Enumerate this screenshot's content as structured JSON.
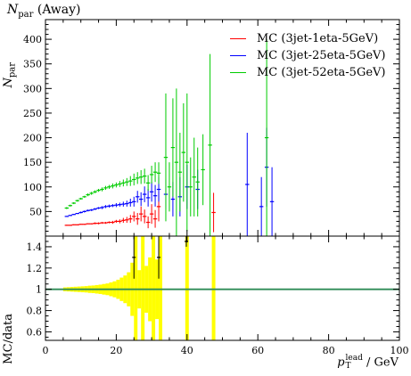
{
  "chart_data": [
    {
      "type": "scatter",
      "panel": "main",
      "title": "N_par (Away)",
      "title_main": "N",
      "title_sub": "par",
      "title_rest": " (Away)",
      "ylabel_main": "N",
      "ylabel_sub": "par",
      "ylim": [
        0,
        440
      ],
      "xlim": [
        0,
        100
      ],
      "y_ticks": [
        50,
        100,
        150,
        200,
        250,
        300,
        350,
        400
      ],
      "y_tick_labels": [
        "50",
        "100",
        "150",
        "200",
        "250",
        "300",
        "350",
        "400"
      ],
      "legend_position": "top-right",
      "series": [
        {
          "name": "MC (3jet-1eta-5GeV)",
          "color": "#ff0000",
          "points": [
            {
              "x": 6,
              "y": 22,
              "err": 1
            },
            {
              "x": 7,
              "y": 22,
              "err": 1
            },
            {
              "x": 8,
              "y": 23,
              "err": 1
            },
            {
              "x": 9,
              "y": 23,
              "err": 1
            },
            {
              "x": 10,
              "y": 24,
              "err": 1
            },
            {
              "x": 11,
              "y": 24,
              "err": 1
            },
            {
              "x": 12,
              "y": 25,
              "err": 1
            },
            {
              "x": 13,
              "y": 25,
              "err": 1
            },
            {
              "x": 14,
              "y": 26,
              "err": 2
            },
            {
              "x": 15,
              "y": 26,
              "err": 2
            },
            {
              "x": 16,
              "y": 27,
              "err": 2
            },
            {
              "x": 17,
              "y": 27,
              "err": 2
            },
            {
              "x": 18,
              "y": 28,
              "err": 2
            },
            {
              "x": 19,
              "y": 28,
              "err": 3
            },
            {
              "x": 20,
              "y": 30,
              "err": 3
            },
            {
              "x": 21,
              "y": 30,
              "err": 4
            },
            {
              "x": 22,
              "y": 32,
              "err": 5
            },
            {
              "x": 23,
              "y": 33,
              "err": 6
            },
            {
              "x": 24,
              "y": 35,
              "err": 8
            },
            {
              "x": 25,
              "y": 40,
              "err": 10
            },
            {
              "x": 26,
              "y": 35,
              "err": 12
            },
            {
              "x": 27,
              "y": 45,
              "err": 15
            },
            {
              "x": 28,
              "y": 40,
              "err": 14
            },
            {
              "x": 29,
              "y": 28,
              "err": 12
            },
            {
              "x": 30,
              "y": 45,
              "err": 20
            },
            {
              "x": 31,
              "y": 35,
              "err": 18
            },
            {
              "x": 32,
              "y": 60,
              "err": 30
            },
            {
              "x": 47.5,
              "y": 48,
              "err": 40
            }
          ]
        },
        {
          "name": "MC (3jet-25eta-5GeV)",
          "color": "#0000ff",
          "points": [
            {
              "x": 6,
              "y": 40,
              "err": 1
            },
            {
              "x": 7,
              "y": 42,
              "err": 1
            },
            {
              "x": 8,
              "y": 44,
              "err": 1
            },
            {
              "x": 9,
              "y": 46,
              "err": 1
            },
            {
              "x": 10,
              "y": 48,
              "err": 2
            },
            {
              "x": 11,
              "y": 50,
              "err": 2
            },
            {
              "x": 12,
              "y": 52,
              "err": 2
            },
            {
              "x": 13,
              "y": 53,
              "err": 2
            },
            {
              "x": 14,
              "y": 55,
              "err": 2
            },
            {
              "x": 15,
              "y": 57,
              "err": 2
            },
            {
              "x": 16,
              "y": 58,
              "err": 3
            },
            {
              "x": 17,
              "y": 60,
              "err": 3
            },
            {
              "x": 18,
              "y": 61,
              "err": 3
            },
            {
              "x": 19,
              "y": 62,
              "err": 3
            },
            {
              "x": 20,
              "y": 63,
              "err": 4
            },
            {
              "x": 21,
              "y": 64,
              "err": 4
            },
            {
              "x": 22,
              "y": 65,
              "err": 5
            },
            {
              "x": 23,
              "y": 66,
              "err": 6
            },
            {
              "x": 24,
              "y": 68,
              "err": 8
            },
            {
              "x": 25,
              "y": 70,
              "err": 10
            },
            {
              "x": 26,
              "y": 80,
              "err": 12
            },
            {
              "x": 27,
              "y": 75,
              "err": 14
            },
            {
              "x": 28,
              "y": 85,
              "err": 16
            },
            {
              "x": 29,
              "y": 78,
              "err": 18
            },
            {
              "x": 30,
              "y": 90,
              "err": 20
            },
            {
              "x": 31,
              "y": 82,
              "err": 22
            },
            {
              "x": 32,
              "y": 95,
              "err": 25
            },
            {
              "x": 34,
              "y": 85,
              "err": 30
            },
            {
              "x": 36,
              "y": 75,
              "err": 35
            },
            {
              "x": 38,
              "y": 80,
              "err": 40
            },
            {
              "x": 40,
              "y": 100,
              "err": 45
            },
            {
              "x": 43,
              "y": 95,
              "err": 40
            },
            {
              "x": 57,
              "y": 105,
              "err": 105
            },
            {
              "x": 61,
              "y": 60,
              "err": 60
            },
            {
              "x": 62.5,
              "y": 140,
              "err": 80
            },
            {
              "x": 64,
              "y": 70,
              "err": 70
            }
          ]
        },
        {
          "name": "MC (3jet-52eta-5GeV)",
          "color": "#00cc00",
          "points": [
            {
              "x": 6,
              "y": 57,
              "err": 2
            },
            {
              "x": 7,
              "y": 62,
              "err": 2
            },
            {
              "x": 8,
              "y": 67,
              "err": 2
            },
            {
              "x": 9,
              "y": 72,
              "err": 2
            },
            {
              "x": 10,
              "y": 76,
              "err": 2
            },
            {
              "x": 11,
              "y": 80,
              "err": 2
            },
            {
              "x": 12,
              "y": 84,
              "err": 3
            },
            {
              "x": 13,
              "y": 87,
              "err": 3
            },
            {
              "x": 14,
              "y": 90,
              "err": 3
            },
            {
              "x": 15,
              "y": 93,
              "err": 3
            },
            {
              "x": 16,
              "y": 95,
              "err": 4
            },
            {
              "x": 17,
              "y": 98,
              "err": 4
            },
            {
              "x": 18,
              "y": 100,
              "err": 4
            },
            {
              "x": 19,
              "y": 102,
              "err": 5
            },
            {
              "x": 20,
              "y": 104,
              "err": 5
            },
            {
              "x": 21,
              "y": 106,
              "err": 6
            },
            {
              "x": 22,
              "y": 108,
              "err": 7
            },
            {
              "x": 23,
              "y": 110,
              "err": 8
            },
            {
              "x": 24,
              "y": 112,
              "err": 10
            },
            {
              "x": 25,
              "y": 115,
              "err": 12
            },
            {
              "x": 26,
              "y": 118,
              "err": 12
            },
            {
              "x": 27,
              "y": 120,
              "err": 14
            },
            {
              "x": 28,
              "y": 122,
              "err": 15
            },
            {
              "x": 29,
              "y": 108,
              "err": 16
            },
            {
              "x": 30,
              "y": 125,
              "err": 18
            },
            {
              "x": 31,
              "y": 130,
              "err": 20
            },
            {
              "x": 32,
              "y": 128,
              "err": 22
            },
            {
              "x": 34,
              "y": 160,
              "err": 130
            },
            {
              "x": 35,
              "y": 100,
              "err": 50
            },
            {
              "x": 36,
              "y": 180,
              "err": 100
            },
            {
              "x": 37,
              "y": 150,
              "err": 150
            },
            {
              "x": 38,
              "y": 130,
              "err": 80
            },
            {
              "x": 39,
              "y": 170,
              "err": 100
            },
            {
              "x": 40,
              "y": 150,
              "err": 140
            },
            {
              "x": 41,
              "y": 100,
              "err": 60
            },
            {
              "x": 42,
              "y": 120,
              "err": 80
            },
            {
              "x": 43,
              "y": 110,
              "err": 70
            },
            {
              "x": 44.5,
              "y": 135,
              "err": 72
            },
            {
              "x": 46.5,
              "y": 185,
              "err": 185
            },
            {
              "x": 62.5,
              "y": 200,
              "err": 200
            }
          ]
        }
      ]
    },
    {
      "type": "scatter",
      "panel": "ratio",
      "ylabel": "MC/data",
      "xlabel_main": "p",
      "xlabel_sub": "T",
      "xlabel_sup": "lead",
      "xlabel_rest": " / GeV",
      "xlim": [
        0,
        100
      ],
      "ylim": [
        0.52,
        1.5
      ],
      "x_ticks": [
        0,
        20,
        40,
        60,
        80,
        100
      ],
      "x_tick_labels": [
        "0",
        "20",
        "40",
        "60",
        "80",
        "100"
      ],
      "y_ticks": [
        0.6,
        0.8,
        1,
        1.2,
        1.4
      ],
      "y_tick_labels": [
        "0.6",
        "0.8",
        "1",
        "1.2",
        "1.4"
      ],
      "reference_line": 1,
      "reference_color": "#2e8b57",
      "band_color": "#ffff00",
      "band": [
        {
          "x0": 5,
          "x1": 6,
          "half": 0.018
        },
        {
          "x0": 6,
          "x1": 7,
          "half": 0.02
        },
        {
          "x0": 7,
          "x1": 8,
          "half": 0.022
        },
        {
          "x0": 8,
          "x1": 9,
          "half": 0.024
        },
        {
          "x0": 9,
          "x1": 10,
          "half": 0.026
        },
        {
          "x0": 10,
          "x1": 11,
          "half": 0.028
        },
        {
          "x0": 11,
          "x1": 12,
          "half": 0.03
        },
        {
          "x0": 12,
          "x1": 13,
          "half": 0.034
        },
        {
          "x0": 13,
          "x1": 14,
          "half": 0.036
        },
        {
          "x0": 14,
          "x1": 15,
          "half": 0.04
        },
        {
          "x0": 15,
          "x1": 16,
          "half": 0.044
        },
        {
          "x0": 16,
          "x1": 17,
          "half": 0.05
        },
        {
          "x0": 17,
          "x1": 18,
          "half": 0.055
        },
        {
          "x0": 18,
          "x1": 19,
          "half": 0.065
        },
        {
          "x0": 19,
          "x1": 20,
          "half": 0.075
        },
        {
          "x0": 20,
          "x1": 21,
          "half": 0.09
        },
        {
          "x0": 21,
          "x1": 22,
          "half": 0.11
        },
        {
          "x0": 22,
          "x1": 23,
          "half": 0.13
        },
        {
          "x0": 23,
          "x1": 24,
          "half": 0.16
        },
        {
          "x0": 24,
          "x1": 25,
          "half": 0.25
        },
        {
          "x0": 25,
          "x1": 26,
          "half": 0.5
        },
        {
          "x0": 26,
          "x1": 27,
          "half": 0.18
        },
        {
          "x0": 27,
          "x1": 28,
          "half": 0.5
        },
        {
          "x0": 28,
          "x1": 29,
          "half": 0.22
        },
        {
          "x0": 29,
          "x1": 30,
          "half": 0.3
        },
        {
          "x0": 30,
          "x1": 31,
          "half": 0.5
        },
        {
          "x0": 31,
          "x1": 32,
          "half": 0.28
        },
        {
          "x0": 32,
          "x1": 33,
          "half": 0.5
        },
        {
          "x0": 39.5,
          "x1": 40.5,
          "half": 0.5
        },
        {
          "x0": 47,
          "x1": 48,
          "half": 0.5
        }
      ],
      "points": [
        {
          "x": 25,
          "y": 1.3,
          "err": 0.2,
          "color": "#000000"
        },
        {
          "x": 32,
          "y": 1.3,
          "err": 0.2,
          "color": "#000000"
        },
        {
          "x": 39.8,
          "y": 1.45,
          "err": 0.05,
          "color": "#000000"
        }
      ]
    }
  ]
}
